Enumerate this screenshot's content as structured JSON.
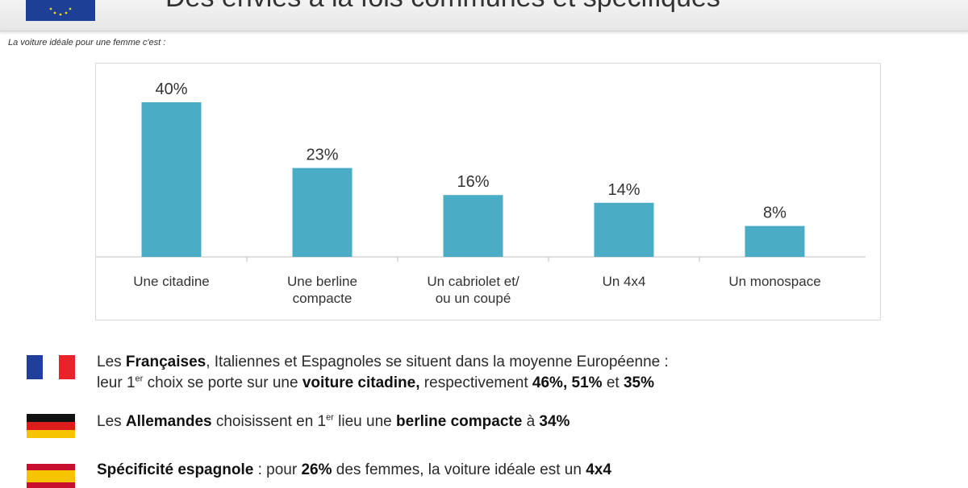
{
  "header": {
    "title": "Des envies à la fois communes et spécifiques"
  },
  "subtitle": "La voiture idéale pour une femme c'est :",
  "chart_data": {
    "type": "bar",
    "categories": [
      [
        "Une citadine"
      ],
      [
        "Une berline",
        "compacte"
      ],
      [
        "Un cabriolet et/",
        "ou un coupé"
      ],
      [
        "Un 4x4"
      ],
      [
        "Un monospace"
      ]
    ],
    "values": [
      40,
      23,
      16,
      14,
      8
    ],
    "data_labels": [
      "40%",
      "23%",
      "16%",
      "14%",
      "8%"
    ],
    "ylim": [
      0,
      40
    ],
    "bar_color": "#4bacc6",
    "grid": false
  },
  "notes": {
    "fr": {
      "line1": [
        "Les ",
        "Françaises",
        ", Italiennes et Espagnoles se situent dans la moyenne Européenne :"
      ],
      "line2": [
        "leur 1",
        "er",
        " choix se porte sur une ",
        "voiture citadine,",
        " respectivement ",
        "46%, 51%",
        " et ",
        "35%"
      ]
    },
    "de": {
      "line1": [
        "Les ",
        "Allemandes",
        " choisissent en 1",
        "er",
        " lieu une ",
        "berline compacte",
        " à ",
        "34%"
      ]
    },
    "es": {
      "line1": [
        "Spécificité espagnole",
        " : pour ",
        "26%",
        " des femmes, la voiture idéale est un ",
        "4x4"
      ]
    }
  },
  "flag_colors": {
    "france": [
      "#1f3f9a",
      "#ffffff",
      "#e8232a"
    ],
    "germany": [
      "#111111",
      "#dd1c1c",
      "#f6c400"
    ],
    "spain": [
      "#c8102e",
      "#f6c400"
    ]
  }
}
